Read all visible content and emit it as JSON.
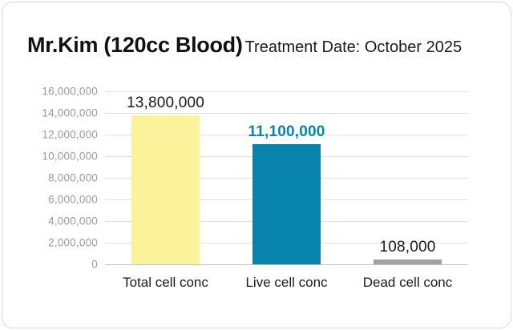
{
  "header": {
    "title": "Mr.Kim (120cc Blood)",
    "subtitle": "Treatment Date: October 2025"
  },
  "chart_data": {
    "type": "bar",
    "title": "Mr.Kim (120cc Blood)",
    "subtitle": "Treatment Date: October 2025",
    "categories": [
      "Total cell conc",
      "Live cell conc",
      "Dead cell conc"
    ],
    "values": [
      13800000,
      11100000,
      108000
    ],
    "value_labels": [
      "13,800,000",
      "11,100,000",
      "108,000"
    ],
    "bar_colors": [
      "#FBF39C",
      "#0883AC",
      "#A1A1A1"
    ],
    "value_label_colors": [
      "#1A1A1A",
      "#0883AC",
      "#1A1A1A"
    ],
    "value_label_bold": [
      false,
      true,
      false
    ],
    "xlabel": "",
    "ylabel": "",
    "ylim": [
      0,
      16000000
    ],
    "ytick_step": 2000000,
    "ytick_labels": [
      "0",
      "2,000,000",
      "4,000,000",
      "6,000,000",
      "8,000,000",
      "10,000,000",
      "12,000,000",
      "14,000,000",
      "16,000,000"
    ],
    "grid": true,
    "legend": false,
    "grid_color": "#dfdfdf",
    "zero_line_color": "#c2c2c2",
    "axis_label_color": "#9a9a9a",
    "category_label_color": "#1a1a1a"
  }
}
